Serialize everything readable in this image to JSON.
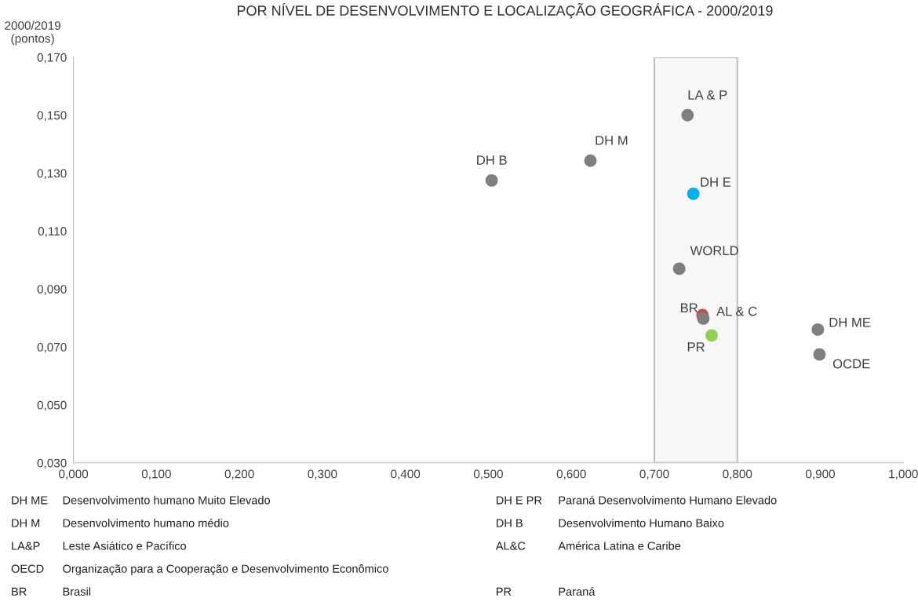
{
  "chart_data": {
    "type": "scatter",
    "title": "POR NÍVEL DE DESENVOLVIMENTO E LOCALIZAÇÃO GEOGRÁFICA - 2000/2019",
    "ylabel": "2000/2019\n(pontos)",
    "x": [
      0.504,
      0.623,
      0.74,
      0.747,
      0.73,
      0.758,
      0.759,
      0.769,
      0.897,
      0.899
    ],
    "values": [
      0.1275,
      0.1343,
      0.15,
      0.1229,
      0.097,
      0.081,
      0.0798,
      0.074,
      0.076,
      0.0674
    ],
    "colors": [
      "#7f7f7f",
      "#7f7f7f",
      "#7f7f7f",
      "#00b0f0",
      "#7f7f7f",
      "#c0504d",
      "#7f7f7f",
      "#92d050",
      "#7f7f7f",
      "#7f7f7f"
    ],
    "marker": "circle",
    "xlim": [
      0,
      1
    ],
    "xticks": [
      {
        "value": 0,
        "label": "0,000"
      },
      {
        "value": 0.1,
        "label": "0,100"
      },
      {
        "value": 0.2,
        "label": "0,200"
      },
      {
        "value": 0.3,
        "label": "0,300"
      },
      {
        "value": 0.4,
        "label": "0,400"
      },
      {
        "value": 0.5,
        "label": "0,500"
      },
      {
        "value": 0.6,
        "label": "0,600"
      },
      {
        "value": 0.7,
        "label": "0,700"
      },
      {
        "value": 0.8,
        "label": "0,800"
      },
      {
        "value": 0.9,
        "label": "0,900"
      },
      {
        "value": 1,
        "label": "1,000"
      }
    ],
    "ylim": [
      0.03,
      0.17
    ],
    "yticks": [
      {
        "value": 0.03,
        "label": "0,030"
      },
      {
        "value": 0.05,
        "label": "0,050"
      },
      {
        "value": 0.07,
        "label": "0,070"
      },
      {
        "value": 0.09,
        "label": "0,090"
      },
      {
        "value": 0.11,
        "label": "0,110"
      },
      {
        "value": 0.13,
        "label": "0,130"
      },
      {
        "value": 0.15,
        "label": "0,150"
      },
      {
        "value": 0.17,
        "label": "0,170"
      }
    ],
    "bands": [
      {
        "axis": "x",
        "from": 0.7,
        "to": 0.8,
        "color": "#bfbfbf"
      }
    ],
    "grid": false,
    "annotations": [
      {
        "text": "DH B",
        "x": 0.504,
        "y": 0.1275
      },
      {
        "text": "DH M",
        "x": 0.623,
        "y": 0.1343
      },
      {
        "text": "LA & P",
        "x": 0.74,
        "y": 0.15
      },
      {
        "text": "DH E",
        "x": 0.747,
        "y": 0.1229
      },
      {
        "text": "WORLD",
        "x": 0.73,
        "y": 0.097
      },
      {
        "text": "BR",
        "x": 0.758,
        "y": 0.081
      },
      {
        "text": "AL & C",
        "x": 0.759,
        "y": 0.0798
      },
      {
        "text": "PR",
        "x": 0.769,
        "y": 0.074
      },
      {
        "text": "DH ME",
        "x": 0.897,
        "y": 0.076
      },
      {
        "text": "OCDE",
        "x": 0.899,
        "y": 0.0674
      },
      "DH ME",
      "Desenvolvimento humano Muito Elevado",
      "DH E PR",
      "Paraná Desenvolvimento Humano Elevado",
      "DH M",
      "Desenvolvimento humano médio",
      "DH B",
      "Desenvolvimento Humano Baixo",
      "LA&P",
      "Leste Asiático e Pacífico",
      "AL&C",
      "América Latina e Caribe",
      "OECD",
      "Organização para a Cooperação e Desenvolvimento Econômico",
      "BR",
      "Brasil",
      "PR",
      "Paraná"
    ]
  }
}
